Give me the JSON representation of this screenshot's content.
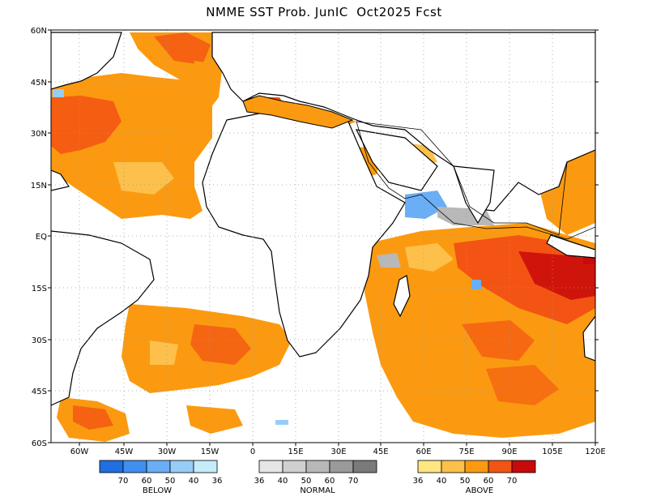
{
  "title": "NMME SST Prob. JunIC  Oct2025 Fcst",
  "lat_labels": [
    "60N",
    "45N",
    "30N",
    "15N",
    "EQ",
    "15S",
    "30S",
    "45S",
    "60S"
  ],
  "lon_labels": [
    "60W",
    "45W",
    "30W",
    "15W",
    "0",
    "15E",
    "30E",
    "45E",
    "60E",
    "75E",
    "90E",
    "105E",
    "120E"
  ],
  "map_extent": {
    "lon_min": -75,
    "lon_max": 120,
    "lat_min": -60,
    "lat_max": 60
  },
  "legend": [
    {
      "name": "BELOW",
      "colors": [
        "#1f6fe0",
        "#3f8ff0",
        "#6aaef5",
        "#96cdf8",
        "#c4ecfb"
      ],
      "labels": [
        "70",
        "60",
        "50",
        "40",
        "36"
      ]
    },
    {
      "name": "NORMAL",
      "colors": [
        "#e6e6e6",
        "#d0d0d0",
        "#b8b8b8",
        "#9a9a9a",
        "#7a7a7a"
      ],
      "labels": [
        "36",
        "40",
        "50",
        "60",
        "70"
      ]
    },
    {
      "name": "ABOVE",
      "colors": [
        "#ffe680",
        "#fdc04a",
        "#fb9a10",
        "#f35413",
        "#c80a0a"
      ],
      "labels": [
        "36",
        "40",
        "50",
        "60",
        "70"
      ]
    }
  ]
}
